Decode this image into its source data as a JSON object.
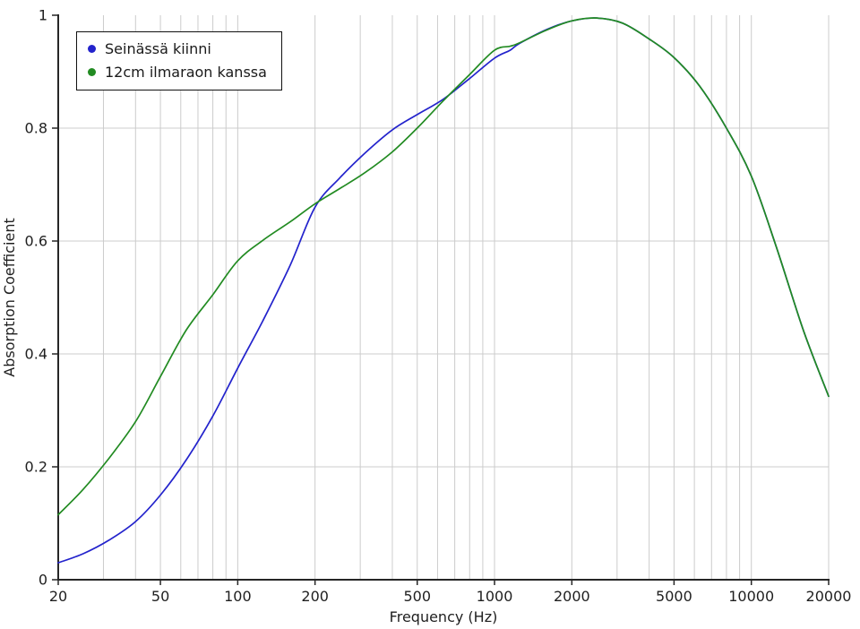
{
  "chart_data": {
    "type": "line",
    "title": "",
    "xlabel": "Frequency (Hz)",
    "ylabel": "Absorption Coefficient",
    "x_scale": "log",
    "xlim": [
      20,
      20000
    ],
    "ylim": [
      0,
      1
    ],
    "grid": true,
    "legend_position": "top-left",
    "x_major_ticks": [
      20,
      50,
      100,
      200,
      500,
      1000,
      2000,
      5000,
      10000,
      20000
    ],
    "x_major_tick_labels": [
      "20",
      "50",
      "100",
      "200",
      "500",
      "1000",
      "2000",
      "5000",
      "10000",
      "20000"
    ],
    "x_gridlines": [
      30,
      40,
      50,
      60,
      70,
      80,
      90,
      100,
      200,
      300,
      400,
      500,
      600,
      700,
      800,
      900,
      1000,
      2000,
      3000,
      4000,
      5000,
      6000,
      7000,
      8000,
      9000,
      10000,
      20000
    ],
    "y_ticks": [
      0,
      0.2,
      0.4,
      0.6,
      0.8,
      1
    ],
    "y_tick_labels": [
      "0",
      "0.2",
      "0.4",
      "0.6",
      "0.8",
      "1"
    ],
    "y_gridlines": [
      0.2,
      0.4,
      0.6,
      0.8
    ],
    "frequencies": [
      20,
      25,
      31.5,
      40,
      50,
      63,
      80,
      100,
      125,
      160,
      200,
      250,
      315,
      400,
      500,
      630,
      800,
      1000,
      1150,
      1250,
      1600,
      2000,
      2500,
      3150,
      4000,
      5000,
      6300,
      8000,
      10000,
      12500,
      16000,
      20000
    ],
    "series": [
      {
        "name": "Seinässä kiinni",
        "color": "#2323cc",
        "marker": "dot",
        "values": [
          0.03,
          0.046,
          0.07,
          0.103,
          0.15,
          0.212,
          0.29,
          0.375,
          0.458,
          0.557,
          0.66,
          0.712,
          0.757,
          0.797,
          0.824,
          0.851,
          0.888,
          0.924,
          0.938,
          0.95,
          0.975,
          0.99,
          0.995,
          0.986,
          0.958,
          0.925,
          0.874,
          0.8,
          0.715,
          0.59,
          0.44,
          0.325
        ]
      },
      {
        "name": "12cm ilmaraon kanssa",
        "color": "#228b22",
        "marker": "dot",
        "values": [
          0.115,
          0.16,
          0.215,
          0.28,
          0.36,
          0.442,
          0.505,
          0.565,
          0.601,
          0.634,
          0.666,
          0.693,
          0.722,
          0.758,
          0.8,
          0.848,
          0.895,
          0.938,
          0.945,
          0.951,
          0.974,
          0.99,
          0.995,
          0.986,
          0.958,
          0.925,
          0.874,
          0.8,
          0.715,
          0.59,
          0.44,
          0.325
        ]
      }
    ]
  },
  "colors": {
    "background": "#ffffff",
    "gridline": "#cccccc",
    "axis": "#262626",
    "text": "#1f1f1f"
  }
}
